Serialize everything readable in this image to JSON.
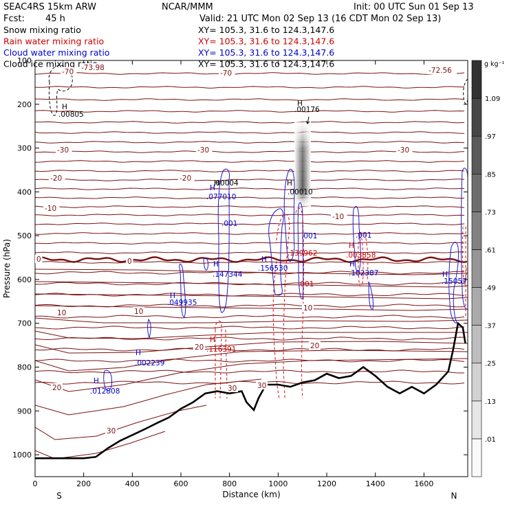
{
  "header": {
    "model": "SEAC4RS 15km ARW",
    "center": "NCAR/MMM",
    "init": "Init: 00 UTC Sun 01 Sep 13",
    "fcst_label": "Fcst:",
    "fcst_value": "45 h",
    "valid": "Valid: 21 UTC Mon 02 Sep 13 (16 CDT Mon 02 Sep 13)"
  },
  "legend": [
    {
      "label": "Snow mixing ratio",
      "xy": "XY=  105.3,  31.6  to  124.3,147.6",
      "color": "#000000"
    },
    {
      "label": "Rain water mixing ratio",
      "xy": "XY=  105.3,  31.6  to  124.3,147.6",
      "color": "#cc0000"
    },
    {
      "label": "Cloud water mixing ratio",
      "xy": "XY=  105.3,  31.6  to  124.3,147.6",
      "color": "#0000cc"
    },
    {
      "label": "Cloud ice mixing ratio",
      "xy": "XY=  105.3,  31.6  to  124.3,147.6",
      "color": "#000000"
    }
  ],
  "colorbar": {
    "unit": "g kg⁻¹",
    "labels": [
      ".01",
      ".13",
      ".25",
      ".37",
      ".49",
      ".61",
      ".73",
      ".85",
      ".97",
      "1.09"
    ]
  },
  "chart_data": {
    "type": "cross-section",
    "xlabel": "Distance (km)",
    "ylabel": "Pressure (hPa)",
    "xlim": [
      0,
      1780
    ],
    "ylim": [
      1050,
      100
    ],
    "x_ticks": [
      0,
      200,
      400,
      600,
      800,
      1000,
      1200,
      1400,
      1600
    ],
    "y_ticks": [
      100,
      200,
      300,
      400,
      500,
      600,
      700,
      800,
      900,
      1000
    ],
    "end_labels": {
      "left": "S",
      "right": "N"
    },
    "temperature_labels": [
      "-70",
      "-72.56",
      "-73.98",
      "-70",
      "-30",
      "-30",
      "-30",
      "-20",
      "-20",
      "-10",
      "-10",
      "0",
      "0",
      "10",
      "10",
      "10",
      "20",
      "20",
      "20",
      "30",
      "30",
      "30"
    ],
    "extrema_markers": [
      "H",
      "H",
      "H",
      "H",
      "H",
      "H",
      "H",
      "H",
      "H",
      "H",
      "H",
      "H",
      "H",
      "H"
    ],
    "extrema_values": [
      ".00805",
      ".00176",
      ".00004",
      ".00010",
      ".077010",
      ".001",
      ".001",
      ".001",
      ".147344",
      ".156530",
      ".139962",
      ".003858",
      ".001",
      ".102387",
      ".049935",
      ".15057",
      ".116391",
      ".002239",
      ".012808"
    ],
    "terrain": {
      "x": [
        0,
        100,
        200,
        250,
        300,
        350,
        400,
        450,
        500,
        550,
        600,
        650,
        700,
        750,
        800,
        850,
        870,
        900,
        920,
        950,
        1000,
        1050,
        1100,
        1150,
        1200,
        1250,
        1300,
        1350,
        1400,
        1450,
        1500,
        1550,
        1600,
        1650,
        1700,
        1720,
        1740,
        1760,
        1770
      ],
      "p": [
        1008,
        1008,
        1008,
        1005,
        985,
        968,
        955,
        942,
        928,
        915,
        895,
        880,
        860,
        855,
        860,
        855,
        880,
        898,
        870,
        840,
        840,
        845,
        835,
        830,
        815,
        825,
        820,
        800,
        820,
        845,
        860,
        845,
        860,
        840,
        810,
        760,
        700,
        710,
        745
      ]
    }
  }
}
